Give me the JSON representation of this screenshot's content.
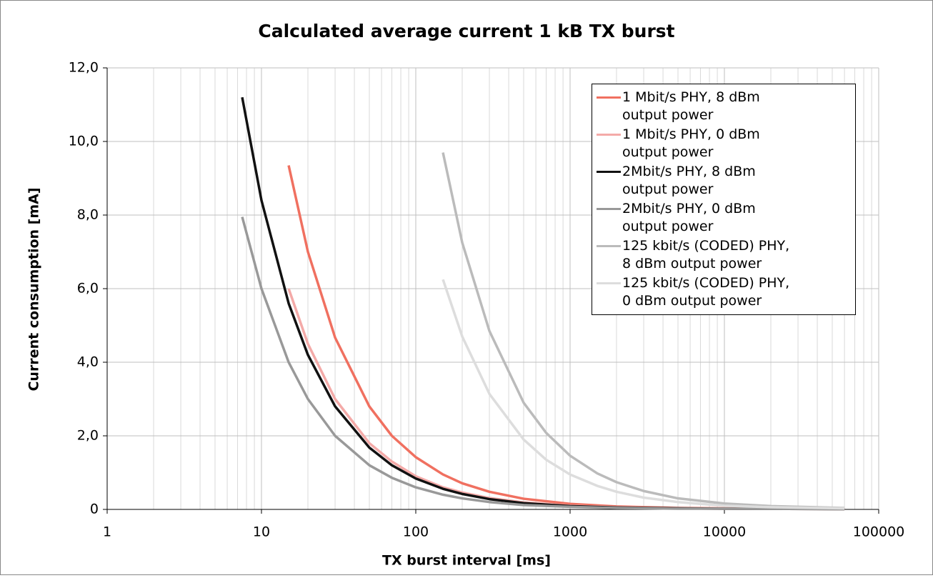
{
  "chart_data": {
    "type": "line",
    "title": "Calculated average current 1 kB TX burst",
    "x_label": "TX burst interval [ms]",
    "y_label": "Current consumption [mA]",
    "xscale": "log",
    "xlim": [
      1,
      100000
    ],
    "xticks": [
      1,
      10,
      100,
      1000,
      10000,
      100000
    ],
    "ylim": [
      0,
      12
    ],
    "yticks": [
      0,
      {
        "value": 2,
        "label": "2,0"
      },
      {
        "value": 4,
        "label": "4,0"
      },
      {
        "value": 6,
        "label": "6,0"
      },
      {
        "value": 8,
        "label": "8,0"
      },
      {
        "value": 10,
        "label": "10,0"
      },
      {
        "value": 12,
        "label": "12,0"
      }
    ],
    "grid": true,
    "minor_grid": true,
    "legend": "upper right",
    "series": [
      {
        "name": "1 Mbit/s PHY, 8 dBm\noutput power",
        "color": "#f07060",
        "x": [
          15,
          20,
          30,
          50,
          70,
          100,
          150,
          200,
          300,
          500,
          1000,
          2000,
          5000,
          10000,
          60000
        ],
        "values": [
          9.35,
          7.0,
          4.67,
          2.8,
          2.0,
          1.42,
          0.95,
          0.71,
          0.48,
          0.29,
          0.15,
          0.08,
          0.04,
          0.03,
          0.02
        ]
      },
      {
        "name": "1 Mbit/s PHY, 0 dBm\noutput power",
        "color": "#f4aaa8",
        "x": [
          15,
          20,
          30,
          50,
          70,
          100,
          150,
          200,
          300,
          500,
          1000,
          2000,
          5000,
          10000,
          60000
        ],
        "values": [
          6.0,
          4.5,
          3.0,
          1.8,
          1.3,
          0.9,
          0.6,
          0.46,
          0.31,
          0.19,
          0.1,
          0.06,
          0.03,
          0.02,
          0.01
        ]
      },
      {
        "name": "2Mbit/s PHY, 8 dBm\noutput power",
        "color": "#111111",
        "x": [
          7.5,
          10,
          15,
          20,
          30,
          50,
          70,
          100,
          150,
          200,
          300,
          500,
          1000,
          2000,
          5000,
          10000,
          60000
        ],
        "values": [
          11.2,
          8.4,
          5.6,
          4.2,
          2.8,
          1.68,
          1.2,
          0.84,
          0.56,
          0.42,
          0.28,
          0.17,
          0.09,
          0.05,
          0.03,
          0.02,
          0.01
        ]
      },
      {
        "name": "2Mbit/s PHY, 0 dBm\noutput power",
        "color": "#999999",
        "x": [
          7.5,
          10,
          15,
          20,
          30,
          50,
          70,
          100,
          150,
          200,
          300,
          500,
          1000,
          2000,
          5000,
          10000,
          60000
        ],
        "values": [
          7.95,
          6.0,
          4.0,
          3.0,
          2.0,
          1.2,
          0.86,
          0.6,
          0.4,
          0.3,
          0.2,
          0.12,
          0.07,
          0.04,
          0.02,
          0.02,
          0.01
        ]
      },
      {
        "name": "125 kbit/s (CODED) PHY,\n8 dBm output power",
        "color": "#bbbbbb",
        "x": [
          150,
          200,
          300,
          500,
          700,
          1000,
          1500,
          2000,
          3000,
          5000,
          10000,
          20000,
          60000
        ],
        "values": [
          9.7,
          7.25,
          4.85,
          2.9,
          2.08,
          1.46,
          0.98,
          0.74,
          0.5,
          0.3,
          0.16,
          0.09,
          0.04
        ]
      },
      {
        "name": "125 kbit/s (CODED) PHY,\n0 dBm output power",
        "color": "#dddddd",
        "x": [
          150,
          200,
          300,
          500,
          700,
          1000,
          1500,
          2000,
          3000,
          5000,
          10000,
          20000,
          60000
        ],
        "values": [
          6.25,
          4.7,
          3.14,
          1.9,
          1.35,
          0.95,
          0.64,
          0.48,
          0.32,
          0.2,
          0.1,
          0.06,
          0.03
        ]
      }
    ]
  }
}
